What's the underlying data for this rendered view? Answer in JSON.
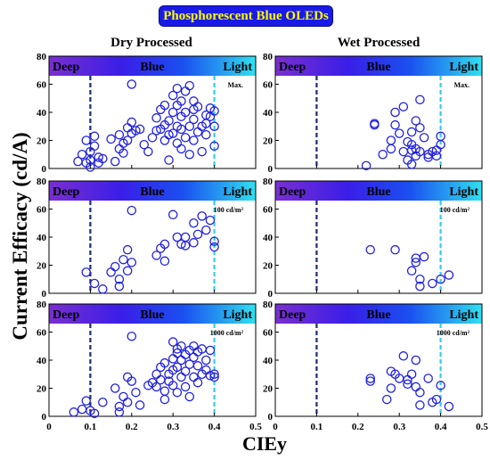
{
  "title": "Phosphorescent Blue OLEDs",
  "column_headers": [
    "Dry Processed",
    "Wet Processed"
  ],
  "band_labels": {
    "deep": "Deep",
    "blue": "Blue",
    "light": "Light"
  },
  "ylabel": "Current Efficacy (cd/A)",
  "xlabel": "CIEy",
  "colors": {
    "title_bg": "#1a1ae6",
    "title_text": "#ffff00",
    "marker": "#2020e0",
    "deep_line": "#1a2a7a",
    "light_line": "#33ccee",
    "band_gradient": [
      "#7a2fd0",
      "#3a1ee8",
      "#1a50f0",
      "#30e0f0"
    ]
  },
  "chart_data": [
    {
      "type": "scatter",
      "panel": "dry-max",
      "column": "Dry Processed",
      "annotation": "Max.",
      "xlim": [
        0,
        0.5
      ],
      "ylim": [
        0,
        80
      ],
      "xticks": [
        "0",
        "0.1",
        "0.2",
        "0.3",
        "0.4",
        "0.5"
      ],
      "yticks": [
        "0",
        "20",
        "40",
        "60",
        "80"
      ],
      "reference_lines": [
        0.1,
        0.4
      ],
      "points": [
        [
          0.07,
          5
        ],
        [
          0.08,
          10
        ],
        [
          0.09,
          4
        ],
        [
          0.09,
          20
        ],
        [
          0.1,
          12
        ],
        [
          0.1,
          6
        ],
        [
          0.1,
          1
        ],
        [
          0.11,
          16
        ],
        [
          0.11,
          23
        ],
        [
          0.12,
          8
        ],
        [
          0.12,
          4
        ],
        [
          0.13,
          7
        ],
        [
          0.15,
          21
        ],
        [
          0.16,
          5
        ],
        [
          0.17,
          24
        ],
        [
          0.17,
          14
        ],
        [
          0.18,
          18
        ],
        [
          0.18,
          11
        ],
        [
          0.19,
          29
        ],
        [
          0.19,
          20
        ],
        [
          0.2,
          33
        ],
        [
          0.2,
          25
        ],
        [
          0.2,
          60
        ],
        [
          0.21,
          27
        ],
        [
          0.22,
          28
        ],
        [
          0.23,
          17
        ],
        [
          0.24,
          12
        ],
        [
          0.25,
          22
        ],
        [
          0.26,
          27
        ],
        [
          0.26,
          36
        ],
        [
          0.27,
          42
        ],
        [
          0.27,
          28
        ],
        [
          0.28,
          45
        ],
        [
          0.28,
          31
        ],
        [
          0.28,
          20
        ],
        [
          0.29,
          6
        ],
        [
          0.29,
          24
        ],
        [
          0.29,
          34
        ],
        [
          0.3,
          40
        ],
        [
          0.3,
          25
        ],
        [
          0.3,
          52
        ],
        [
          0.31,
          30
        ],
        [
          0.31,
          18
        ],
        [
          0.31,
          57
        ],
        [
          0.31,
          45
        ],
        [
          0.32,
          14
        ],
        [
          0.32,
          28
        ],
        [
          0.32,
          37
        ],
        [
          0.32,
          48
        ],
        [
          0.33,
          22
        ],
        [
          0.33,
          55
        ],
        [
          0.33,
          40
        ],
        [
          0.34,
          30
        ],
        [
          0.34,
          59
        ],
        [
          0.34,
          10
        ],
        [
          0.35,
          42
        ],
        [
          0.35,
          48
        ],
        [
          0.35,
          20
        ],
        [
          0.35,
          35
        ],
        [
          0.36,
          26
        ],
        [
          0.36,
          44
        ],
        [
          0.37,
          30
        ],
        [
          0.37,
          12
        ],
        [
          0.38,
          38
        ],
        [
          0.38,
          32
        ],
        [
          0.38,
          24
        ],
        [
          0.39,
          43
        ],
        [
          0.39,
          37
        ],
        [
          0.4,
          16
        ],
        [
          0.4,
          41
        ],
        [
          0.4,
          30
        ]
      ]
    },
    {
      "type": "scatter",
      "panel": "wet-max",
      "column": "Wet Processed",
      "annotation": "Max.",
      "xlim": [
        0,
        0.5
      ],
      "ylim": [
        0,
        80
      ],
      "xticks": [
        "0",
        "0.1",
        "0.2",
        "0.3",
        "0.4",
        "0.5"
      ],
      "yticks": [
        "0",
        "20",
        "40",
        "60",
        "80"
      ],
      "reference_lines": [
        0.1,
        0.4
      ],
      "points": [
        [
          0.22,
          2
        ],
        [
          0.24,
          32
        ],
        [
          0.24,
          31
        ],
        [
          0.26,
          10
        ],
        [
          0.28,
          14
        ],
        [
          0.28,
          20
        ],
        [
          0.29,
          40
        ],
        [
          0.29,
          31
        ],
        [
          0.3,
          25
        ],
        [
          0.31,
          44
        ],
        [
          0.31,
          12
        ],
        [
          0.32,
          19
        ],
        [
          0.32,
          6
        ],
        [
          0.33,
          17
        ],
        [
          0.33,
          26
        ],
        [
          0.33,
          13
        ],
        [
          0.33,
          3
        ],
        [
          0.34,
          34
        ],
        [
          0.34,
          14
        ],
        [
          0.34,
          9
        ],
        [
          0.35,
          49
        ],
        [
          0.35,
          29
        ],
        [
          0.35,
          12
        ],
        [
          0.36,
          22
        ],
        [
          0.37,
          10
        ],
        [
          0.37,
          8
        ],
        [
          0.38,
          12
        ],
        [
          0.39,
          13
        ],
        [
          0.39,
          9
        ],
        [
          0.4,
          17
        ],
        [
          0.4,
          23
        ]
      ]
    },
    {
      "type": "scatter",
      "panel": "dry-100",
      "column": "Dry Processed",
      "annotation": "100 cd/m²",
      "xlim": [
        0,
        0.5
      ],
      "ylim": [
        0,
        80
      ],
      "xticks": [
        "0",
        "0.1",
        "0.2",
        "0.3",
        "0.4",
        "0.5"
      ],
      "yticks": [
        "0",
        "20",
        "40",
        "60",
        "80"
      ],
      "reference_lines": [
        0.1,
        0.4
      ],
      "points": [
        [
          0.09,
          15
        ],
        [
          0.11,
          7
        ],
        [
          0.13,
          3
        ],
        [
          0.15,
          15
        ],
        [
          0.16,
          19
        ],
        [
          0.17,
          10
        ],
        [
          0.17,
          5
        ],
        [
          0.18,
          24
        ],
        [
          0.19,
          31
        ],
        [
          0.19,
          16
        ],
        [
          0.2,
          22
        ],
        [
          0.2,
          59
        ],
        [
          0.26,
          27
        ],
        [
          0.27,
          32
        ],
        [
          0.28,
          35
        ],
        [
          0.28,
          23
        ],
        [
          0.3,
          56
        ],
        [
          0.31,
          40
        ],
        [
          0.32,
          35
        ],
        [
          0.33,
          40
        ],
        [
          0.33,
          34
        ],
        [
          0.35,
          50
        ],
        [
          0.35,
          36
        ],
        [
          0.36,
          42
        ],
        [
          0.37,
          55
        ],
        [
          0.38,
          45
        ],
        [
          0.39,
          52
        ],
        [
          0.4,
          33
        ],
        [
          0.4,
          37
        ]
      ]
    },
    {
      "type": "scatter",
      "panel": "wet-100",
      "column": "Wet Processed",
      "annotation": "100 cd/m²",
      "xlim": [
        0,
        0.5
      ],
      "ylim": [
        0,
        80
      ],
      "xticks": [
        "0",
        "0.1",
        "0.2",
        "0.3",
        "0.4",
        "0.5"
      ],
      "yticks": [
        "0",
        "20",
        "40",
        "60",
        "80"
      ],
      "reference_lines": [
        0.1,
        0.4
      ],
      "points": [
        [
          0.23,
          31
        ],
        [
          0.29,
          31
        ],
        [
          0.33,
          16
        ],
        [
          0.34,
          25
        ],
        [
          0.34,
          22
        ],
        [
          0.35,
          10
        ],
        [
          0.35,
          5
        ],
        [
          0.36,
          26
        ],
        [
          0.38,
          7
        ],
        [
          0.4,
          10
        ],
        [
          0.42,
          13
        ]
      ]
    },
    {
      "type": "scatter",
      "panel": "dry-1000",
      "column": "Dry Processed",
      "annotation": "1000 cd/m²",
      "xlim": [
        0,
        0.5
      ],
      "ylim": [
        0,
        80
      ],
      "xticks": [
        "0",
        "0.1",
        "0.2",
        "0.3",
        "0.4",
        "0.5"
      ],
      "yticks": [
        "0",
        "20",
        "40",
        "60",
        "80"
      ],
      "reference_lines": [
        0.1,
        0.4
      ],
      "points": [
        [
          0.06,
          3
        ],
        [
          0.08,
          5
        ],
        [
          0.09,
          11
        ],
        [
          0.1,
          4
        ],
        [
          0.11,
          2
        ],
        [
          0.13,
          10
        ],
        [
          0.16,
          20
        ],
        [
          0.17,
          7
        ],
        [
          0.17,
          3
        ],
        [
          0.18,
          14
        ],
        [
          0.19,
          28
        ],
        [
          0.19,
          10
        ],
        [
          0.2,
          25
        ],
        [
          0.2,
          57
        ],
        [
          0.21,
          17
        ],
        [
          0.22,
          8
        ],
        [
          0.24,
          22
        ],
        [
          0.25,
          24
        ],
        [
          0.26,
          21
        ],
        [
          0.26,
          30
        ],
        [
          0.27,
          35
        ],
        [
          0.27,
          26
        ],
        [
          0.28,
          18
        ],
        [
          0.28,
          12
        ],
        [
          0.28,
          38
        ],
        [
          0.29,
          30
        ],
        [
          0.29,
          25
        ],
        [
          0.3,
          41
        ],
        [
          0.3,
          53
        ],
        [
          0.3,
          22
        ],
        [
          0.3,
          33
        ],
        [
          0.31,
          45
        ],
        [
          0.31,
          35
        ],
        [
          0.31,
          48
        ],
        [
          0.31,
          17
        ],
        [
          0.32,
          28
        ],
        [
          0.32,
          40
        ],
        [
          0.32,
          50
        ],
        [
          0.33,
          32
        ],
        [
          0.33,
          44
        ],
        [
          0.33,
          21
        ],
        [
          0.34,
          47
        ],
        [
          0.34,
          37
        ],
        [
          0.34,
          14
        ],
        [
          0.35,
          28
        ],
        [
          0.35,
          50
        ],
        [
          0.35,
          42
        ],
        [
          0.36,
          46
        ],
        [
          0.36,
          36
        ],
        [
          0.36,
          24
        ],
        [
          0.37,
          30
        ],
        [
          0.37,
          48
        ],
        [
          0.38,
          40
        ],
        [
          0.38,
          33
        ],
        [
          0.39,
          29
        ],
        [
          0.39,
          47
        ],
        [
          0.4,
          30
        ],
        [
          0.4,
          28
        ]
      ]
    },
    {
      "type": "scatter",
      "panel": "wet-1000",
      "column": "Wet Processed",
      "annotation": "1000 cd/m²",
      "xlim": [
        0,
        0.5
      ],
      "ylim": [
        0,
        80
      ],
      "xticks": [
        "0",
        "0.1",
        "0.2",
        "0.3",
        "0.4",
        "0.5"
      ],
      "yticks": [
        "0",
        "20",
        "40",
        "60",
        "80"
      ],
      "reference_lines": [
        0.1,
        0.4
      ],
      "points": [
        [
          0.23,
          25
        ],
        [
          0.23,
          27
        ],
        [
          0.27,
          12
        ],
        [
          0.28,
          32
        ],
        [
          0.28,
          20
        ],
        [
          0.29,
          30
        ],
        [
          0.3,
          27
        ],
        [
          0.31,
          43
        ],
        [
          0.32,
          23
        ],
        [
          0.32,
          26
        ],
        [
          0.33,
          30
        ],
        [
          0.34,
          21
        ],
        [
          0.34,
          40
        ],
        [
          0.35,
          17
        ],
        [
          0.35,
          8
        ],
        [
          0.37,
          27
        ],
        [
          0.38,
          10
        ],
        [
          0.39,
          12
        ],
        [
          0.4,
          22
        ],
        [
          0.42,
          7
        ]
      ]
    }
  ]
}
